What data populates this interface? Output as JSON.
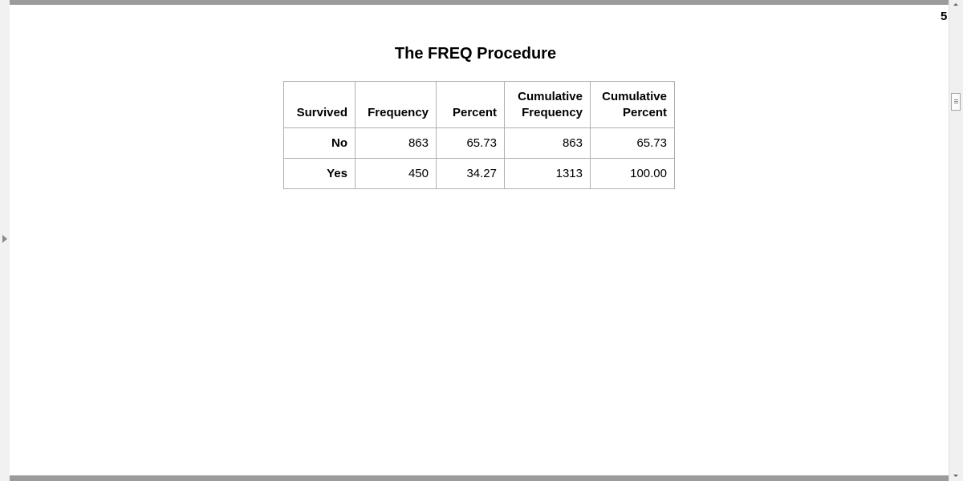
{
  "page_number": "5",
  "title": "The FREQ Procedure",
  "table": {
    "columns": [
      {
        "line1": "",
        "line2": "Survived"
      },
      {
        "line1": "",
        "line2": "Frequency"
      },
      {
        "line1": "",
        "line2": "Percent"
      },
      {
        "line1": "Cumulative",
        "line2": "Frequency"
      },
      {
        "line1": "Cumulative",
        "line2": "Percent"
      }
    ],
    "rows": [
      {
        "label": "No",
        "frequency": "863",
        "percent": "65.73",
        "cum_frequency": "863",
        "cum_percent": "65.73"
      },
      {
        "label": "Yes",
        "frequency": "450",
        "percent": "34.27",
        "cum_frequency": "1313",
        "cum_percent": "100.00"
      }
    ]
  }
}
